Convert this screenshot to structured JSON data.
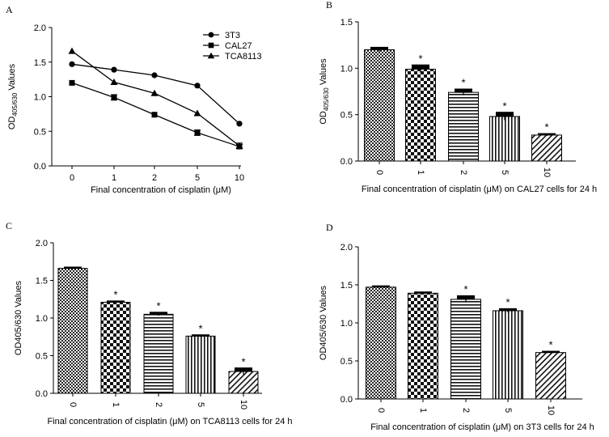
{
  "chart_data": [
    {
      "panel": "A",
      "type": "line",
      "categories": [
        "0",
        "1",
        "2",
        "5",
        "10"
      ],
      "series": [
        {
          "name": "3T3",
          "marker": "circle",
          "values": [
            1.47,
            1.39,
            1.31,
            1.16,
            0.61
          ],
          "err": [
            0,
            0,
            0,
            0,
            0
          ]
        },
        {
          "name": "CAL27",
          "marker": "square",
          "values": [
            1.2,
            0.99,
            0.74,
            0.48,
            0.28
          ],
          "err": [
            0,
            0.04,
            0,
            0.04,
            0.03
          ]
        },
        {
          "name": "TCA8113",
          "marker": "triangle",
          "values": [
            1.66,
            1.21,
            1.05,
            0.76,
            0.29
          ],
          "err": [
            0,
            0,
            0,
            0,
            0.04
          ]
        }
      ],
      "yticks": [
        "0.0",
        "0.5",
        "1.0",
        "1.5",
        "2.0"
      ],
      "ylim": [
        0,
        2.0
      ],
      "ylabel_main": "OD",
      "ylabel_sub": "405/630",
      "ylabel_tail": " Values",
      "xlabel": "Final concentration of cisplatin (μM)",
      "legend_position": "top-right"
    },
    {
      "panel": "B",
      "type": "bar",
      "categories": [
        "0",
        "1",
        "2",
        "5",
        "10"
      ],
      "values": [
        1.2,
        0.99,
        0.74,
        0.48,
        0.28
      ],
      "err": [
        0.02,
        0.04,
        0.03,
        0.04,
        0.01
      ],
      "stars": [
        "",
        "*",
        "*",
        "*",
        "*"
      ],
      "yticks": [
        "0.0",
        "0.5",
        "1.0",
        "1.5"
      ],
      "ylim": [
        0,
        1.5
      ],
      "ylabel_main": "OD",
      "ylabel_sub": "405/630",
      "ylabel_tail": " Values",
      "xlabel": "Final concentration of cisplatin (μM) on CAL27 cells for 24 h"
    },
    {
      "panel": "C",
      "type": "bar",
      "categories": [
        "0",
        "1",
        "2",
        "5",
        "10"
      ],
      "values": [
        1.66,
        1.21,
        1.05,
        0.76,
        0.29
      ],
      "err": [
        0.01,
        0.01,
        0.02,
        0.01,
        0.04
      ],
      "stars": [
        "",
        "*",
        "*",
        "*",
        "*"
      ],
      "yticks": [
        "0.0",
        "0.5",
        "1.0",
        "1.5",
        "2.0"
      ],
      "ylim": [
        0,
        2.0
      ],
      "ylabel_main": "OD405/630",
      "ylabel_sub": "",
      "ylabel_tail": " Values",
      "xlabel": "Final concentration of cisplatin (μM) on TCA8113 cells for 24 h"
    },
    {
      "panel": "D",
      "type": "bar",
      "categories": [
        "0",
        "1",
        "2",
        "5",
        "10"
      ],
      "values": [
        1.47,
        1.39,
        1.31,
        1.16,
        0.61
      ],
      "err": [
        0.01,
        0.01,
        0.04,
        0.02,
        0.01
      ],
      "stars": [
        "",
        "",
        "*",
        "*",
        "*"
      ],
      "yticks": [
        "0.0",
        "0.5",
        "1.0",
        "1.5",
        "2.0"
      ],
      "ylim": [
        0,
        2.0
      ],
      "ylabel_main": "OD405/630",
      "ylabel_sub": "",
      "ylabel_tail": " Values",
      "xlabel": "Final concentration of cisplatin (μM) on 3T3 cells for 24 h"
    }
  ]
}
